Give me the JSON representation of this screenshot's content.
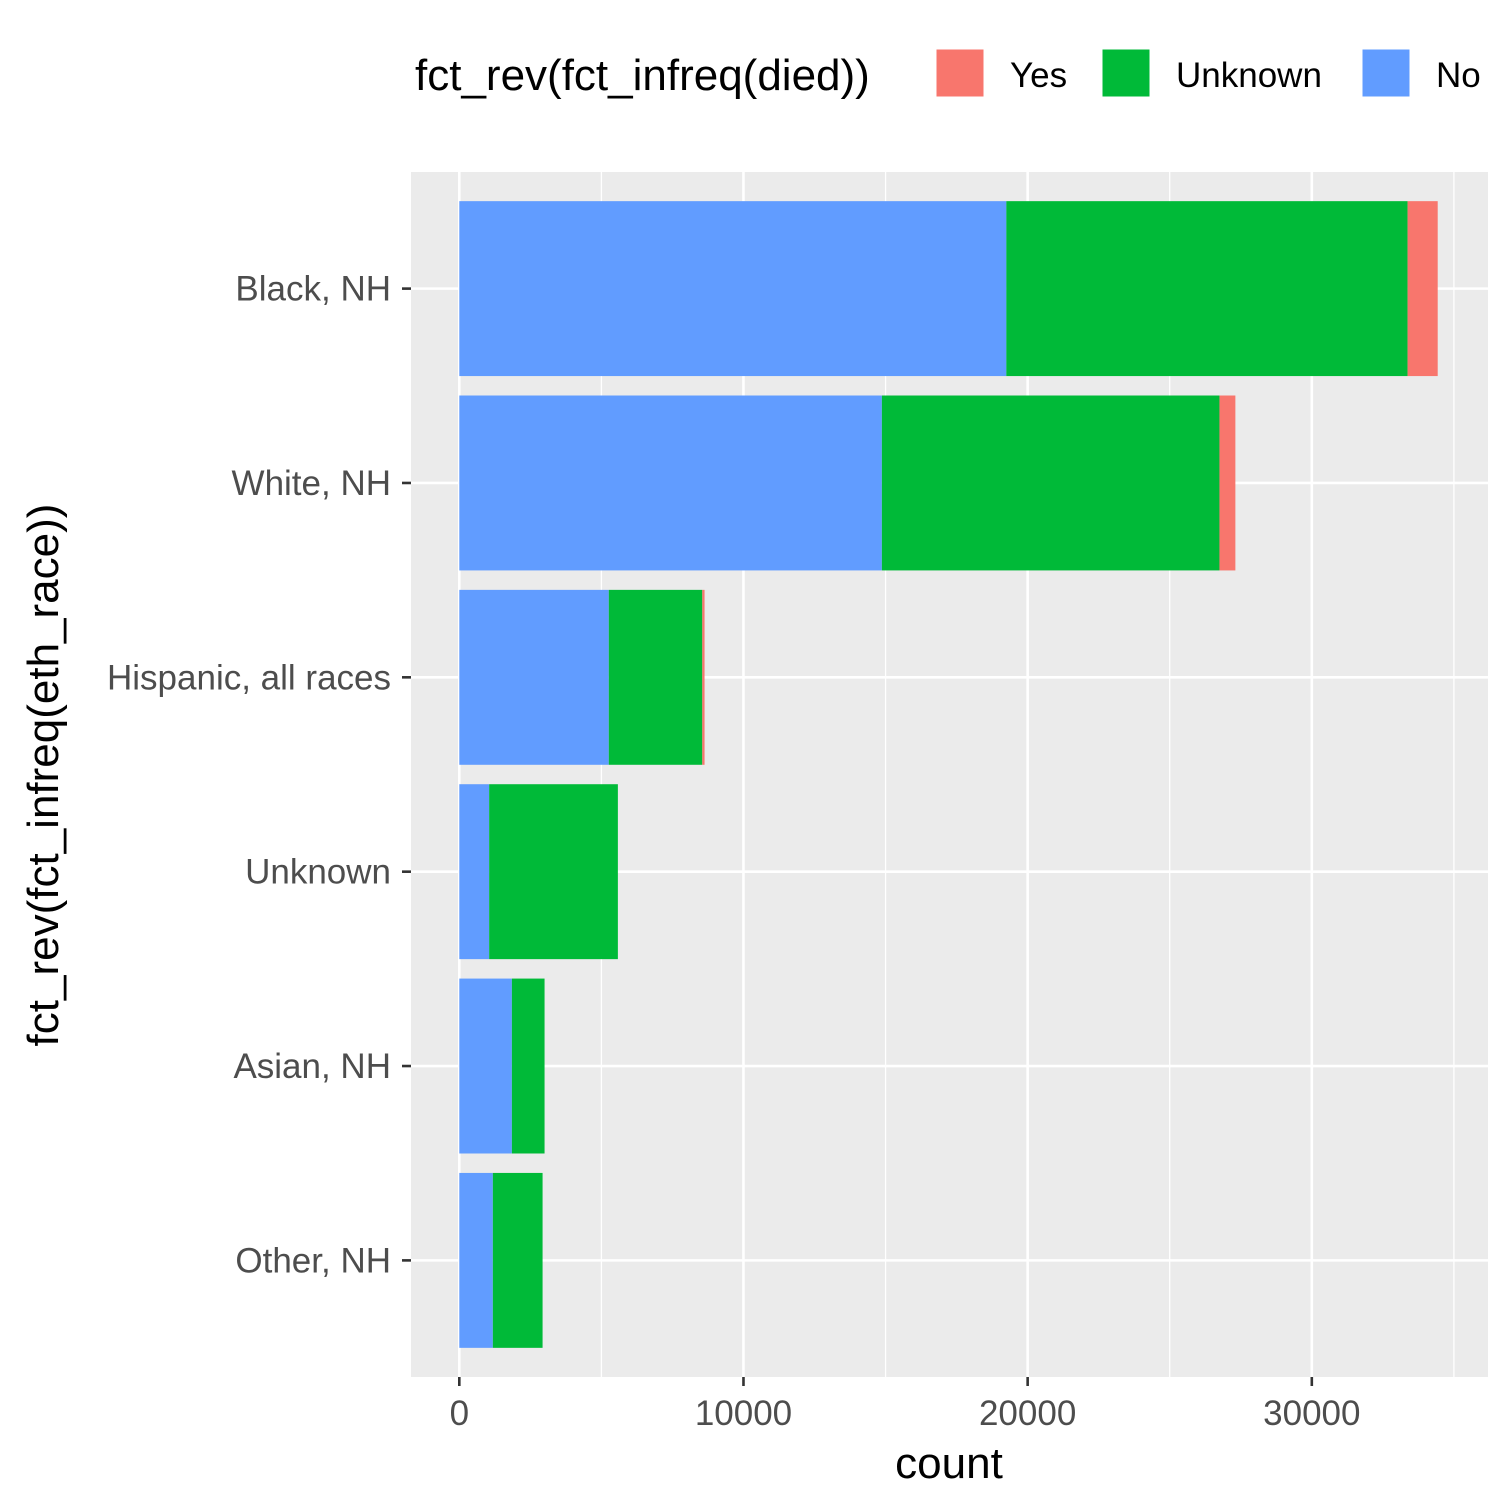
{
  "chart_data": {
    "type": "bar",
    "orientation": "horizontal",
    "stacked": true,
    "categories": [
      "Black, NH",
      "White, NH",
      "Hispanic, all races",
      "Unknown",
      "Asian, NH",
      "Other, NH"
    ],
    "series": [
      {
        "name": "No",
        "color": "#619CFF",
        "values": [
          19250,
          14870,
          5260,
          1050,
          1850,
          1180
        ]
      },
      {
        "name": "Unknown",
        "color": "#00BA38",
        "values": [
          14120,
          11880,
          3290,
          4530,
          1150,
          1750
        ]
      },
      {
        "name": "Yes",
        "color": "#F8766D",
        "values": [
          1060,
          560,
          80,
          0,
          0,
          0
        ]
      }
    ],
    "xlabel": "count",
    "ylabel": "fct_rev(fct_infreq(eth_race))",
    "xlim": [
      -1700,
      36200
    ],
    "x_ticks": [
      "0",
      "10000",
      "20000",
      "30000"
    ],
    "x_tick_values": [
      0,
      10000,
      20000,
      30000
    ],
    "grid": true,
    "legend": {
      "title": "fct_rev(fct_infreq(died))",
      "position": "top",
      "entries": [
        {
          "label": "Yes",
          "color": "#F8766D"
        },
        {
          "label": "Unknown",
          "color": "#00BA38"
        },
        {
          "label": "No",
          "color": "#619CFF"
        }
      ]
    }
  }
}
